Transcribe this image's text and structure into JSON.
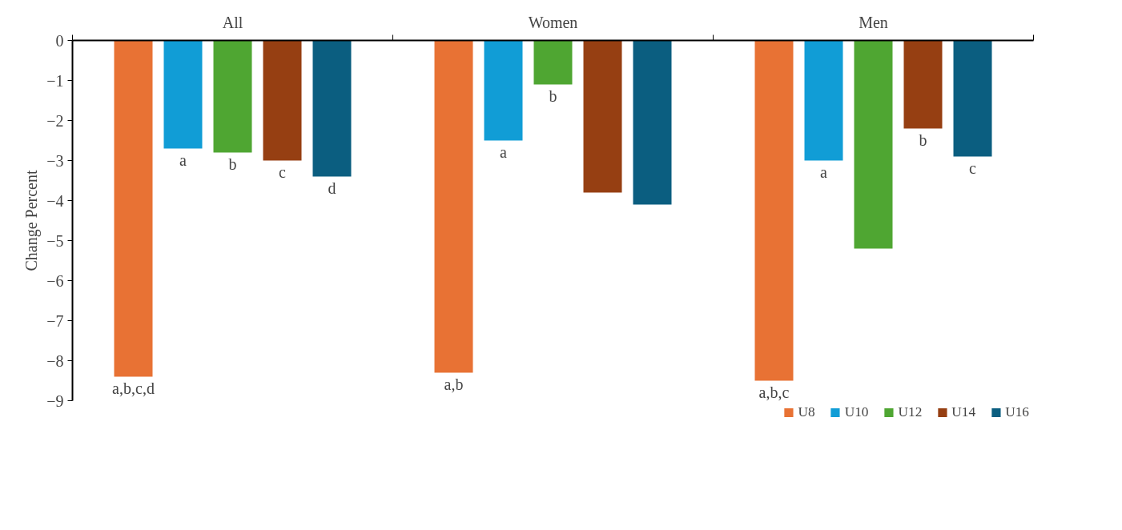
{
  "chart_data": {
    "type": "bar",
    "ylabel": "Change Percent",
    "categories": [
      "All",
      "Women",
      "Men"
    ],
    "series": [
      {
        "name": "U8",
        "color": "#e87234",
        "values": [
          -8.4,
          -8.3,
          -8.5
        ],
        "value_labels": [
          "a,b,c,d",
          "a,b",
          "a,b,c"
        ]
      },
      {
        "name": "U10",
        "color": "#119dd6",
        "values": [
          -2.7,
          -2.5,
          -3.0
        ],
        "value_labels": [
          "a",
          "a",
          "a"
        ]
      },
      {
        "name": "U12",
        "color": "#4fa632",
        "values": [
          -2.8,
          -1.1,
          -5.2
        ],
        "value_labels": [
          "b",
          "b",
          null
        ]
      },
      {
        "name": "U14",
        "color": "#963f12",
        "values": [
          -3.0,
          -3.8,
          -2.2
        ],
        "value_labels": [
          "c",
          null,
          "b"
        ]
      },
      {
        "name": "U16",
        "color": "#0b5e80",
        "values": [
          -3.4,
          -4.1,
          -2.9
        ],
        "value_labels": [
          "d",
          null,
          "c"
        ]
      }
    ],
    "ylim": [
      -9,
      0
    ],
    "yticks": [
      0,
      -1,
      -2,
      -3,
      -4,
      -5,
      -6,
      -7,
      -8,
      -9
    ],
    "grid": false,
    "legend": "bottom"
  }
}
